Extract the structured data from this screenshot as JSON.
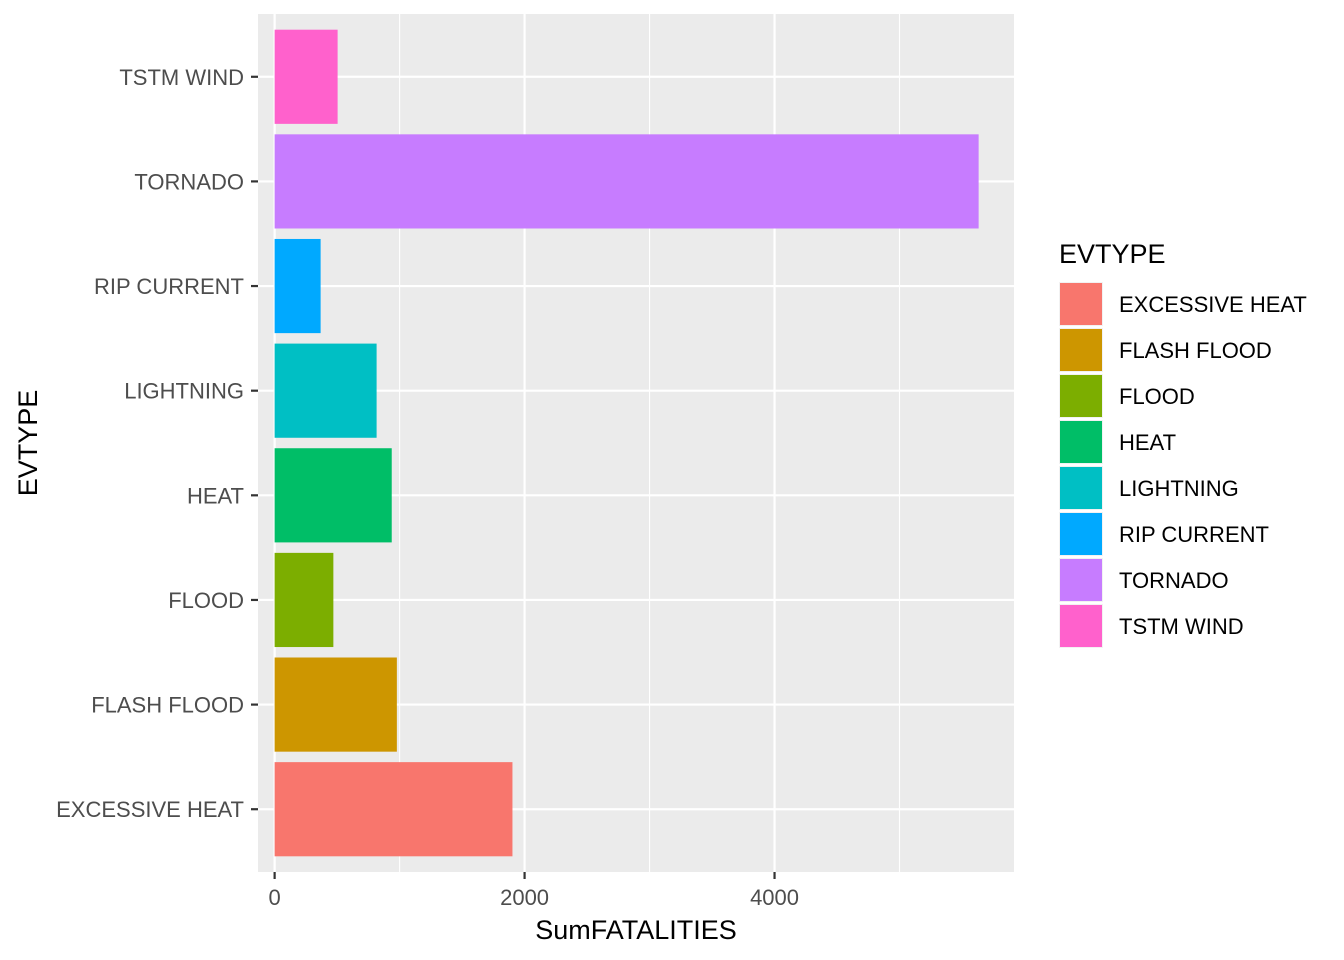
{
  "chart_data": {
    "type": "bar",
    "orientation": "horizontal",
    "xlabel": "SumFATALITIES",
    "ylabel": "EVTYPE",
    "xlim": [
      -133,
      5916
    ],
    "x_ticks": [
      0,
      2000,
      4000
    ],
    "x_tick_labels": [
      "0",
      "2000",
      "4000"
    ],
    "categories": [
      "EXCESSIVE HEAT",
      "FLASH FLOOD",
      "FLOOD",
      "HEAT",
      "LIGHTNING",
      "RIP CURRENT",
      "TORNADO",
      "TSTM WIND"
    ],
    "values": [
      1903,
      978,
      470,
      937,
      816,
      368,
      5633,
      504
    ],
    "colors": [
      "#F8766D",
      "#CD9600",
      "#7CAE00",
      "#00BE67",
      "#00BFC4",
      "#00A9FF",
      "#C77CFF",
      "#FF61CC"
    ],
    "grid": true,
    "background": "#EBEBEB",
    "legend": {
      "title": "EVTYPE",
      "position": "right",
      "items": [
        "EXCESSIVE HEAT",
        "FLASH FLOOD",
        "FLOOD",
        "HEAT",
        "LIGHTNING",
        "RIP CURRENT",
        "TORNADO",
        "TSTM WIND"
      ]
    }
  }
}
